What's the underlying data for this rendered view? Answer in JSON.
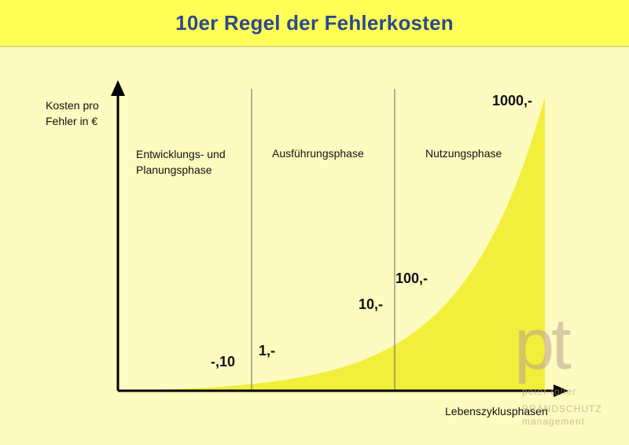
{
  "chart_data": {
    "type": "area",
    "title": "10er Regel der Fehlerkosten",
    "ylabel": "Kosten pro Fehler in €",
    "xlabel": "Lebenszyklusphasen",
    "phases": [
      "Entwicklungs- und Planungsphase",
      "Ausführungsphase",
      "Nutzungsphase"
    ],
    "points": [
      {
        "label": "-,10",
        "value": 0.1
      },
      {
        "label": "1,-",
        "value": 1
      },
      {
        "label": "10,-",
        "value": 10
      },
      {
        "label": "100,-",
        "value": 100
      },
      {
        "label": "1000,-",
        "value": 1000
      }
    ],
    "colors": {
      "fill": "#f2ee3c",
      "background": "#fdfbbf",
      "header": "#ffff55",
      "title": "#2a4a8c"
    },
    "grid": false
  },
  "logo": {
    "letters": "pt",
    "line1": "peter tolter",
    "line2": "BRANDSCHUTZ",
    "line3": "management"
  }
}
